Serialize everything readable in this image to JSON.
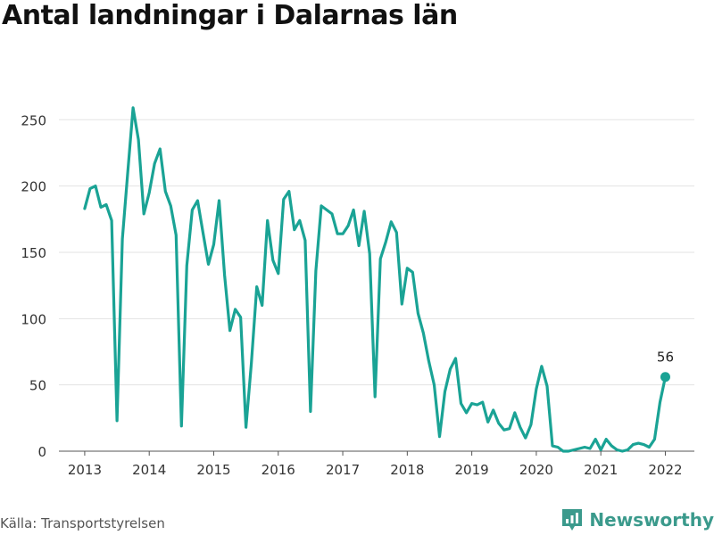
{
  "title": "Antal landningar i Dalarnas län",
  "source": "Källa: Transportstyrelsen",
  "brand": "Newsworthy",
  "colors": {
    "line": "#1aa395",
    "grid": "#e3e3e3",
    "axis": "#555555",
    "brand": "#3b9a8c"
  },
  "chart_data": {
    "type": "line",
    "title": "Antal landningar i Dalarnas län",
    "xlabel": "",
    "ylabel": "",
    "xlim": [
      2012.6,
      2022.45
    ],
    "ylim": [
      0,
      265
    ],
    "yticks": [
      0,
      50,
      100,
      150,
      200,
      250
    ],
    "xticks": [
      "2013",
      "2014",
      "2015",
      "2016",
      "2017",
      "2018",
      "2019",
      "2020",
      "2021",
      "2022"
    ],
    "grid": true,
    "last_label": "56",
    "series": [
      {
        "x": [
          2013.0,
          2013.083,
          2013.167,
          2013.25,
          2013.333,
          2013.417,
          2013.5,
          2013.583,
          2013.667,
          2013.75,
          2013.833,
          2013.917,
          2014.0,
          2014.083,
          2014.167,
          2014.25,
          2014.333,
          2014.417,
          2014.5,
          2014.583,
          2014.667,
          2014.75,
          2014.833,
          2014.917,
          2015.0,
          2015.083,
          2015.167,
          2015.25,
          2015.333,
          2015.417,
          2015.5,
          2015.583,
          2015.667,
          2015.75,
          2015.833,
          2015.917,
          2016.0,
          2016.083,
          2016.167,
          2016.25,
          2016.333,
          2016.417,
          2016.5,
          2016.583,
          2016.667,
          2016.75,
          2016.833,
          2016.917,
          2017.0,
          2017.083,
          2017.167,
          2017.25,
          2017.333,
          2017.417,
          2017.5,
          2017.583,
          2017.667,
          2017.75,
          2017.833,
          2017.917,
          2018.0,
          2018.083,
          2018.167,
          2018.25,
          2018.333,
          2018.417,
          2018.5,
          2018.583,
          2018.667,
          2018.75,
          2018.833,
          2018.917,
          2019.0,
          2019.083,
          2019.167,
          2019.25,
          2019.333,
          2019.417,
          2019.5,
          2019.583,
          2019.667,
          2019.75,
          2019.833,
          2019.917,
          2020.0,
          2020.083,
          2020.167,
          2020.25,
          2020.333,
          2020.417,
          2020.5,
          2020.583,
          2020.667,
          2020.75,
          2020.833,
          2020.917,
          2021.0,
          2021.083,
          2021.167,
          2021.25,
          2021.333,
          2021.417,
          2021.5,
          2021.583,
          2021.667,
          2021.75,
          2021.833,
          2021.917,
          2022.0
        ],
        "y": [
          183,
          198,
          200,
          184,
          186,
          174,
          23,
          160,
          210,
          259,
          235,
          179,
          195,
          217,
          228,
          196,
          185,
          163,
          19,
          140,
          182,
          189,
          165,
          141,
          156,
          189,
          133,
          91,
          107,
          101,
          18,
          66,
          124,
          110,
          174,
          144,
          134,
          190,
          196,
          167,
          174,
          159,
          30,
          136,
          185,
          182,
          179,
          164,
          164,
          170,
          182,
          155,
          181,
          149,
          41,
          145,
          158,
          173,
          165,
          111,
          138,
          135,
          104,
          89,
          68,
          50,
          11,
          45,
          62,
          70,
          36,
          29,
          36,
          35,
          37,
          22,
          31,
          21,
          16,
          17,
          29,
          18,
          10,
          20,
          47,
          64,
          49,
          4,
          3,
          0,
          0,
          1,
          2,
          3,
          2,
          9,
          1,
          9,
          4,
          1,
          0,
          1,
          5,
          6,
          5,
          3,
          9,
          37,
          56
        ]
      }
    ]
  }
}
